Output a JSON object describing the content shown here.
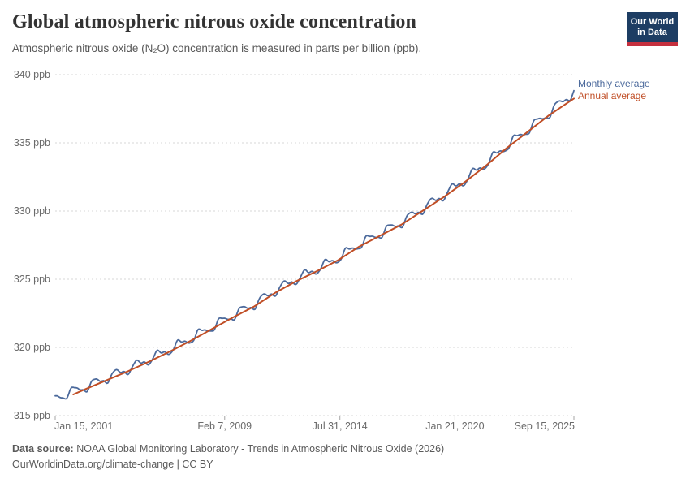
{
  "header": {
    "title": "Global atmospheric nitrous oxide concentration",
    "subtitle": "Atmospheric nitrous oxide (N₂O) concentration is measured in parts per billion (ppb).",
    "logo": {
      "line1": "Our World",
      "line2": "in Data",
      "bg_color": "#1d3d63",
      "bar_color": "#c5303e"
    }
  },
  "chart_data": {
    "type": "line",
    "title": "Global atmospheric nitrous oxide concentration",
    "xlabel": "",
    "ylabel": "ppb",
    "ylim": [
      315,
      340
    ],
    "xlim": [
      2001.04,
      2025.71
    ],
    "grid": "horizontal-dashed",
    "grid_color": "#d7d7d7",
    "tick_color": "#a5a5a5",
    "label_color": "#6b6b6b",
    "legend_position": "right-of-line-ends",
    "y_ticks": [
      {
        "label": "340 ppb",
        "value": 340
      },
      {
        "label": "335 ppb",
        "value": 335
      },
      {
        "label": "330 ppb",
        "value": 330
      },
      {
        "label": "325 ppb",
        "value": 325
      },
      {
        "label": "320 ppb",
        "value": 320
      },
      {
        "label": "315 ppb",
        "value": 315
      }
    ],
    "x_ticks": [
      {
        "label": "Jan 15, 2001",
        "t": 2001.04,
        "align": "left"
      },
      {
        "label": "Feb 7, 2009",
        "t": 2009.1,
        "align": "center"
      },
      {
        "label": "Jul 31, 2014",
        "t": 2014.58,
        "align": "center"
      },
      {
        "label": "Jan 21, 2020",
        "t": 2020.05,
        "align": "center"
      },
      {
        "label": "Sep 15, 2025",
        "t": 2025.71,
        "align": "right"
      }
    ],
    "series": [
      {
        "name": "Monthly average",
        "color": "#4C6A9C",
        "width": 1.8,
        "kind": "monthly",
        "t_start": 2001.04,
        "t_end": 2025.71,
        "step_years": 0.041666,
        "anchors": [
          [
            2001.5,
            316.55
          ],
          [
            2002.5,
            317.1
          ],
          [
            2003.5,
            317.75
          ],
          [
            2004.5,
            318.4
          ],
          [
            2005.5,
            319.1
          ],
          [
            2006.5,
            319.85
          ],
          [
            2007.5,
            320.65
          ],
          [
            2008.5,
            321.5
          ],
          [
            2009.5,
            322.35
          ],
          [
            2010.5,
            323.15
          ],
          [
            2011.5,
            324.15
          ],
          [
            2012.5,
            325.0
          ],
          [
            2013.5,
            325.75
          ],
          [
            2014.5,
            326.55
          ],
          [
            2015.5,
            327.55
          ],
          [
            2016.5,
            328.35
          ],
          [
            2017.5,
            329.15
          ],
          [
            2018.5,
            330.15
          ],
          [
            2019.5,
            331.15
          ],
          [
            2020.5,
            332.25
          ],
          [
            2021.5,
            333.45
          ],
          [
            2022.5,
            334.75
          ],
          [
            2023.5,
            335.95
          ],
          [
            2024.5,
            337.15
          ],
          [
            2025.71,
            338.75
          ]
        ],
        "seasonal_amplitude": 0.3,
        "seasonal_amplitude2": 0.1,
        "seasonal_phase": 0.7,
        "noise_amplitude": 0.05,
        "noise_freq": 19.7,
        "start_value": 316.4,
        "end_value": 338.9
      },
      {
        "name": "Annual average",
        "color": "#C04E26",
        "width": 2,
        "kind": "annual",
        "anchors": [
          [
            2001.9,
            316.55
          ],
          [
            2002.5,
            316.95
          ],
          [
            2003.5,
            317.6
          ],
          [
            2004.5,
            318.25
          ],
          [
            2005.5,
            318.95
          ],
          [
            2006.5,
            319.7
          ],
          [
            2007.5,
            320.5
          ],
          [
            2008.5,
            321.35
          ],
          [
            2009.5,
            322.2
          ],
          [
            2010.5,
            323.0
          ],
          [
            2011.5,
            324.0
          ],
          [
            2012.5,
            324.85
          ],
          [
            2013.5,
            325.6
          ],
          [
            2014.5,
            326.4
          ],
          [
            2015.5,
            327.4
          ],
          [
            2016.5,
            328.2
          ],
          [
            2017.5,
            329.0
          ],
          [
            2018.5,
            330.0
          ],
          [
            2019.5,
            331.0
          ],
          [
            2020.5,
            332.1
          ],
          [
            2021.5,
            333.3
          ],
          [
            2022.5,
            334.6
          ],
          [
            2023.5,
            335.8
          ],
          [
            2024.5,
            337.0
          ],
          [
            2025.71,
            338.25
          ]
        ],
        "start_value": 316.55,
        "end_value": 338.25
      }
    ]
  },
  "footer": {
    "source_label": "Data source:",
    "source_text": " NOAA Global Monitoring Laboratory - Trends in Atmospheric Nitrous Oxide (2026)",
    "link": "OurWorldinData.org/climate-change",
    "separator": " | ",
    "license": "CC BY"
  }
}
